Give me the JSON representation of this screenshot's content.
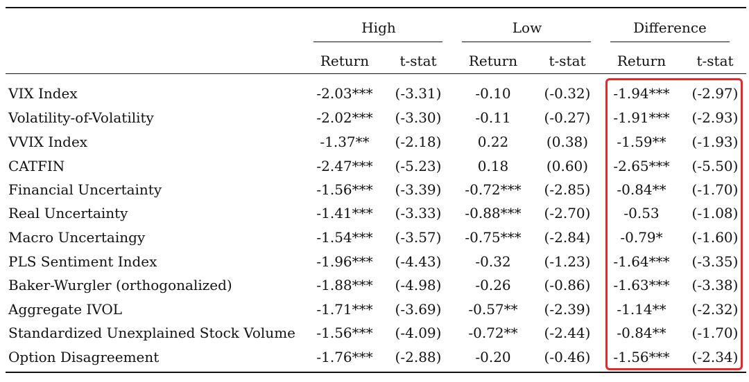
{
  "table": {
    "groups": [
      "High",
      "Low",
      "Difference"
    ],
    "subheaders": [
      "Return",
      "t-stat",
      "Return",
      "t-stat",
      "Return",
      "t-stat"
    ],
    "rows": [
      {
        "label": "VIX Index",
        "values": [
          "-2.03***",
          "(-3.31)",
          "-0.10",
          "(-0.32)",
          "-1.94***",
          "(-2.97)"
        ]
      },
      {
        "label": "Volatility-of-Volatility",
        "values": [
          "-2.02***",
          "(-3.30)",
          "-0.11",
          "(-0.27)",
          "-1.91***",
          "(-2.93)"
        ]
      },
      {
        "label": "VVIX Index",
        "values": [
          "-1.37**",
          "(-2.18)",
          "0.22",
          "(0.38)",
          "-1.59**",
          "(-1.93)"
        ]
      },
      {
        "label": "CATFIN",
        "values": [
          "-2.47***",
          "(-5.23)",
          "0.18",
          "(0.60)",
          "-2.65***",
          "(-5.50)"
        ]
      },
      {
        "label": "Financial Uncertainty",
        "values": [
          "-1.56***",
          "(-3.39)",
          "-0.72***",
          "(-2.85)",
          "-0.84**",
          "(-1.70)"
        ]
      },
      {
        "label": "Real Uncertainty",
        "values": [
          "-1.41***",
          "(-3.33)",
          "-0.88***",
          "(-2.70)",
          "-0.53",
          "(-1.08)"
        ]
      },
      {
        "label": "Macro Uncertaingy",
        "values": [
          "-1.54***",
          "(-3.57)",
          "-0.75***",
          "(-2.84)",
          "-0.79*",
          "(-1.60)"
        ]
      },
      {
        "label": "PLS Sentiment Index",
        "values": [
          "-1.96***",
          "(-4.43)",
          "-0.32",
          "(-1.23)",
          "-1.64***",
          "(-3.35)"
        ]
      },
      {
        "label": "Baker-Wurgler (orthogonalized)",
        "values": [
          "-1.88***",
          "(-4.98)",
          "-0.26",
          "(-0.86)",
          "-1.63***",
          "(-3.38)"
        ]
      },
      {
        "label": "Aggregate IVOL",
        "values": [
          "-1.71***",
          "(-3.69)",
          "-0.57**",
          "(-2.39)",
          "-1.14**",
          "(-2.32)"
        ]
      },
      {
        "label": "Standardized Unexplained Stock Volume",
        "values": [
          "-1.56***",
          "(-4.09)",
          "-0.72**",
          "(-2.44)",
          "-0.84**",
          "(-1.70)"
        ]
      },
      {
        "label": "Option Disagreement",
        "values": [
          "-1.76***",
          "(-2.88)",
          "-0.20",
          "(-0.46)",
          "-1.56***",
          "(-2.34)"
        ]
      }
    ]
  },
  "highlight": {
    "color": "#e8262b",
    "target": "Difference"
  }
}
